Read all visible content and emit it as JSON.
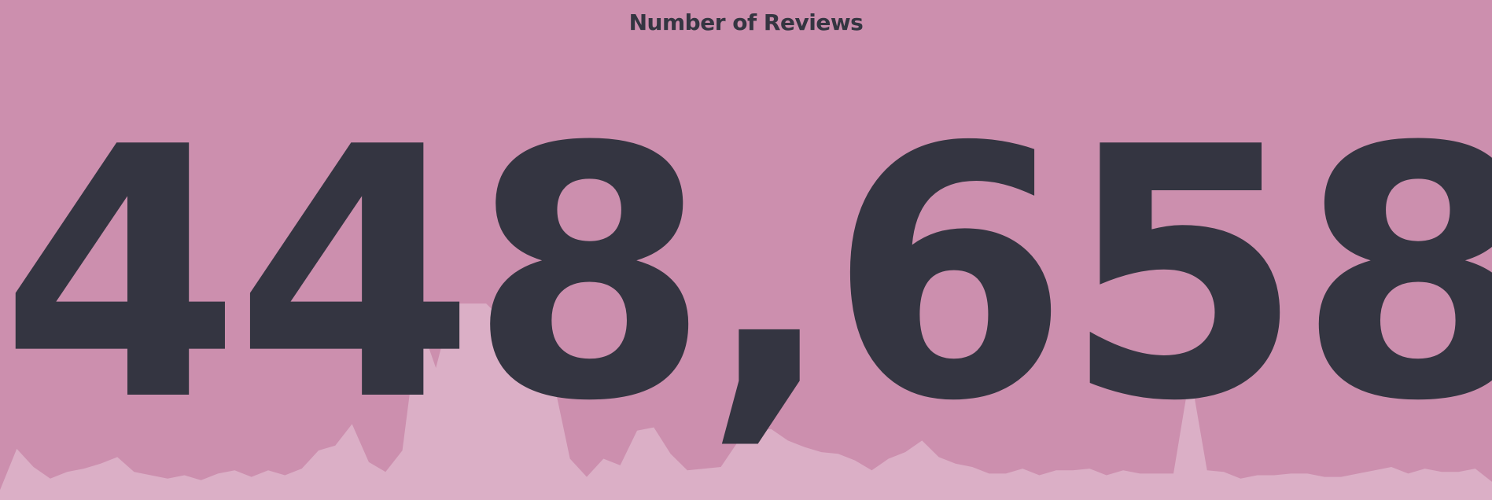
{
  "title": "Number of Reviews",
  "big_number": "448,658",
  "colors": {
    "background": "#cc8fae",
    "text": "#343541",
    "trend_fill": "#dbafc6"
  },
  "chart_data": {
    "type": "area",
    "title": "Number of Reviews",
    "value": 448658,
    "trend": [
      6,
      31,
      20,
      13,
      17,
      19,
      22,
      26,
      17,
      15,
      13,
      15,
      12,
      16,
      18,
      14,
      18,
      15,
      19,
      30,
      33,
      46,
      23,
      17,
      30,
      109,
      80,
      119,
      119,
      119,
      109,
      103,
      90,
      73,
      25,
      14,
      25,
      21,
      42,
      44,
      28,
      18,
      19,
      20,
      35,
      42,
      43,
      36,
      32,
      29,
      28,
      24,
      18,
      25,
      29,
      36,
      26,
      22,
      20,
      16,
      16,
      19,
      15,
      18,
      18,
      19,
      15,
      18,
      16,
      16,
      16,
      77,
      18,
      17,
      13,
      15,
      15,
      16,
      16,
      14,
      14,
      16,
      18,
      20,
      16,
      19,
      17,
      17,
      19,
      11
    ]
  }
}
